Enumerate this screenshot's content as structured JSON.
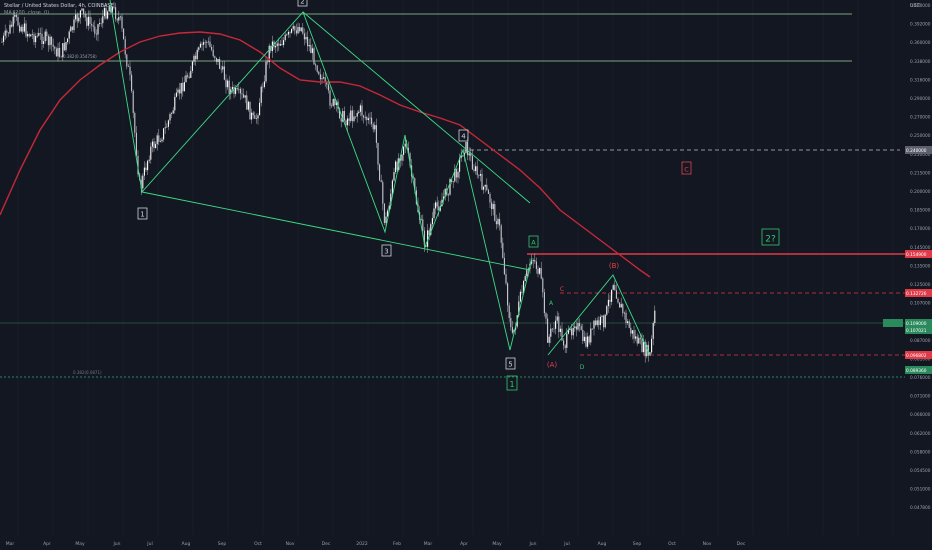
{
  "header": {
    "symbol_line": "Stellar / United States Dollar, 4h, COINBASE",
    "indicator_line": "MA (200, close, 0)"
  },
  "colors": {
    "background": "#131722",
    "candle_up": "#e8e9ec",
    "candle_down": "#e8e9ec",
    "wave_lines": "#3ddc84",
    "moving_average": "#c62838",
    "level_green": "#9fd3a4",
    "level_red": "#e03a48",
    "label_green": "#35c46d",
    "label_red": "#e0444e",
    "grid": "#1e2230"
  },
  "axis": {
    "price_unit": "USD",
    "price_ticks": [
      "0.420000",
      "0.392000",
      "0.360000",
      "0.338000",
      "0.316000",
      "0.290000",
      "0.270000",
      "0.250000",
      "0.230000",
      "0.215000",
      "0.200000",
      "0.185000",
      "0.170000",
      "0.145000",
      "0.135000",
      "0.125000",
      "0.107000",
      "0.093000",
      "0.087000",
      "0.081000",
      "0.076000",
      "0.071000",
      "0.066000",
      "0.062000",
      "0.058000",
      "0.054500",
      "0.051000",
      "0.047800"
    ],
    "time_ticks": [
      "Mar",
      "Apr",
      "May",
      "Jun",
      "Jul",
      "Aug",
      "Sep",
      "Oct",
      "Nov",
      "Dec",
      "2022",
      "Feb",
      "Mar",
      "Apr",
      "May",
      "Jun",
      "Jul",
      "Aug",
      "Sep",
      "Oct",
      "Nov",
      "Dec"
    ]
  },
  "levels": [
    {
      "name": "fib-top",
      "label": "0.382(0.406)",
      "style": "solid-green"
    },
    {
      "name": "fib-1",
      "label": "0.382(0.354758)",
      "style": "solid-green"
    },
    {
      "name": "dashed-upper",
      "label": "0.240000",
      "style": "dashed-red-right"
    },
    {
      "name": "red-level",
      "label": "0.154900",
      "style": "solid-red"
    },
    {
      "name": "dashed-mid",
      "label": "0.132726",
      "style": "dashed-red"
    },
    {
      "name": "price-now",
      "label": "0.109000",
      "style": "solid-green-faint"
    },
    {
      "name": "dashed-low",
      "label": "0.096802",
      "style": "dashed-red"
    },
    {
      "name": "fib-bottom",
      "label": "0.382(0.0871)",
      "style": "dotted-green"
    }
  ],
  "price_tags": {
    "upper": "0.240000",
    "red": "0.154900",
    "mid": "0.132726",
    "now": "0.109000",
    "now2": "0.107021",
    "low": "0.096802",
    "bottom": "0.089360"
  },
  "labels": {
    "w1_box": "1",
    "w3_box": "3",
    "w4_box": "4",
    "w5_box": "5",
    "top_box": "2",
    "A_box": "A",
    "big1_box": "1",
    "big2_box": "2?",
    "C_box": "C",
    "red_A": "(A)",
    "red_B": "(B)",
    "red_C": "C",
    "green_A_small": "A",
    "green_D": "D"
  },
  "chart_data": {
    "type": "candlestick",
    "series": [
      {
        "name": "MA (200, close, 0)",
        "type": "line"
      }
    ],
    "annotations": [
      "1",
      "3",
      "4",
      "5",
      "A",
      "1",
      "2?",
      "C",
      "(A)",
      "(B)",
      "C",
      "A",
      "D"
    ]
  }
}
